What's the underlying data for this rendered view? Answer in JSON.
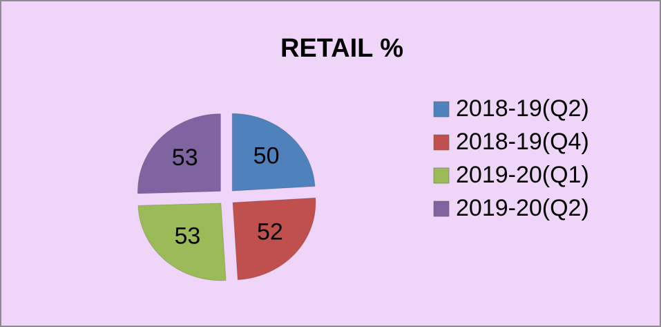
{
  "chart_data": {
    "type": "pie",
    "title": "RETAIL %",
    "categories": [
      "2018-19(Q2)",
      "2018-19(Q4)",
      "2019-20(Q1)",
      "2019-20(Q2)"
    ],
    "values": [
      50,
      52,
      53,
      53
    ],
    "colors": [
      "#4f81bd",
      "#c0504d",
      "#9bbb59",
      "#8064a2"
    ],
    "legend": "right"
  }
}
